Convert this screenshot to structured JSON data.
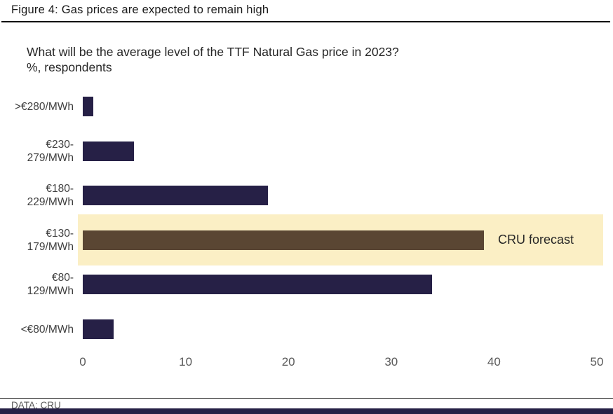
{
  "header": {
    "title": "Figure 4: Gas prices are expected to remain high"
  },
  "chart_data": {
    "type": "bar",
    "orientation": "horizontal",
    "title": "What will be the average level of the TTF Natural Gas price in 2023?",
    "units_label": "%, respondents",
    "categories": [
      ">€280/MWh",
      "€230-\n279/MWh",
      "€180-\n229/MWh",
      "€130-\n179/MWh",
      "€80-\n129/MWh",
      "<€80/MWh"
    ],
    "values": [
      1,
      5,
      18,
      39,
      34,
      3
    ],
    "xlim": [
      0,
      50
    ],
    "x_ticks": [
      "0",
      "10",
      "20",
      "30",
      "40",
      "50"
    ],
    "grid": false,
    "legend_position": "none",
    "bar_color": "#262046",
    "highlight": {
      "row_index": 3,
      "bar_color": "#5a4633",
      "band_color": "#fbefc5",
      "annotation": "CRU forecast"
    }
  },
  "footer": {
    "source": "DATA: CRU",
    "accent_bar_color": "#262046"
  }
}
